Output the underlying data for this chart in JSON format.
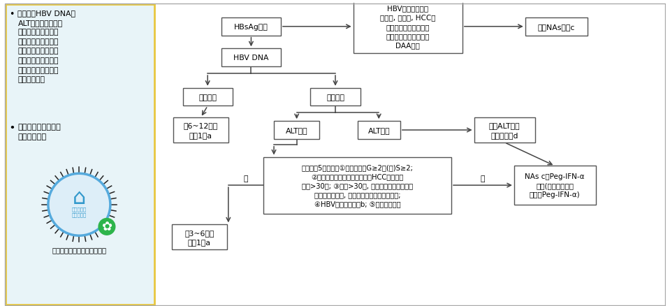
{
  "bg_left_color": "#e8f4f8",
  "border_color": "#e8c840",
  "bullet_text_1": "依据血清HBV DNA、\nALT水平和肝脏疾病\n严重程度，同时需结\n合年龄、家族史和伴\n随疾病等因素，综合\n评估患者疾病进展风\n险，决定是否需要启\n动抗病毒治疗",
  "bullet_text_2": "动态评估比单次检测\n更有临床意义",
  "qr_label": "抗病毒治疗自测小程序二维码",
  "box_HBsAg": "HBsAg阳性",
  "box_HBVDNA": "HBV DNA",
  "box_HBV_related": "HBV相关失代偿期\n肝硬化, 肝衰竭, HCC、\n乙型肝炎肝移植、免疫\n抑制剂应用、丙型肝炎\nDAA治疗",
  "box_immediate": "立即NAs治疗c",
  "box_undetected": "未检测到",
  "box_detected": "可检测到",
  "box_followup1": "每6~12个月\n随访1次a",
  "box_ALT_normal": "ALT正常",
  "box_ALT_high": "ALT升高",
  "box_exclude": "排除ALT升高\n的其他原因d",
  "box_criteria": "符合下列5项之一：①肝脏组织学G≥2和(或)S≥2;\n②有乙型肝炎肝硬化或乙型肝炎HCC家族史且\n年龄>30岁; ③年龄>30岁, 肝纤维化无创判断技术\n或肝组织学检查, 提示明显肝脏炎症或纤维化;\n④HBV相关肝外表现b; ⑤代偿期肝硬化",
  "box_followup2": "每3~6个月\n随访1次a",
  "label_yes": "是",
  "label_no": "否",
  "box_NAs": "NAs c或Peg-IFN-α\n治疗(肝硬化者需慎\n重使用Peg-IFN-α)",
  "arrow_color": "#444444"
}
